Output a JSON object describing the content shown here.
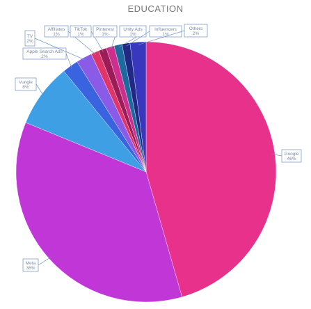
{
  "chart_data": {
    "type": "pie",
    "title": "EDUCATION",
    "slices": [
      {
        "label": "Google",
        "value": 46,
        "pct": "46%",
        "color": "#e8318a"
      },
      {
        "label": "Meta",
        "value": 36,
        "pct": "36%",
        "color": "#c136d6"
      },
      {
        "label": "Vungle",
        "value": 8,
        "pct": "8%",
        "color": "#3f9fe4"
      },
      {
        "label": "Apple Search Ads",
        "value": 2,
        "pct": "2%",
        "color": "#3a63e0"
      },
      {
        "label": "TV",
        "value": 2,
        "pct": "2%",
        "color": "#8a5be6"
      },
      {
        "label": "Affiliates",
        "value": 1,
        "pct": "1%",
        "color": "#e0356a"
      },
      {
        "label": "TikTok",
        "value": 1,
        "pct": "1%",
        "color": "#9b1c56"
      },
      {
        "label": "Pinterest",
        "value": 1,
        "pct": "1%",
        "color": "#cc2f8e"
      },
      {
        "label": "Unity Ads",
        "value": 1,
        "pct": "1%",
        "color": "#1e6a9e"
      },
      {
        "label": "Influencers",
        "value": 1,
        "pct": "1%",
        "color": "#202a86"
      },
      {
        "label": "Others",
        "value": 2,
        "pct": "2%",
        "color": "#3838bf"
      }
    ]
  }
}
